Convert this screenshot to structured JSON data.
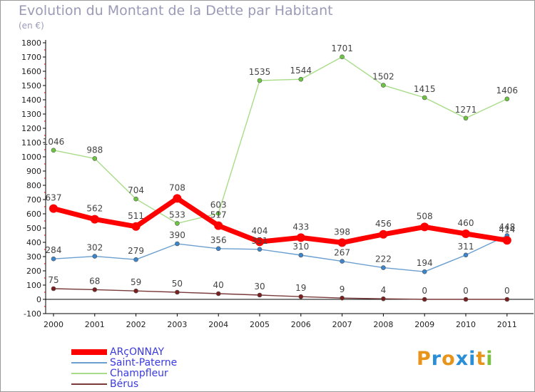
{
  "title": "Evolution du Montant de la Dette par Habitant",
  "subtitle": "(en €)",
  "logo": {
    "text": "Proxiti",
    "letters": [
      "P",
      "r",
      "o",
      "x",
      "i",
      "t",
      "i"
    ],
    "colors": [
      "#e8941a",
      "#2a8fd6",
      "#e8941a",
      "#2a8fd6",
      "#2a8fd6",
      "#e8941a",
      "#7cc242"
    ]
  },
  "chart_data": {
    "type": "line",
    "title": "Evolution du Montant de la Dette par Habitant",
    "ylabel": "(en €)",
    "x": [
      "2000",
      "2001",
      "2002",
      "2003",
      "2004",
      "2005",
      "2006",
      "2007",
      "2008",
      "2009",
      "2010",
      "2011"
    ],
    "ylim": [
      -100,
      1800
    ],
    "yticks": [
      -100,
      0,
      100,
      200,
      300,
      400,
      500,
      600,
      700,
      800,
      900,
      1000,
      1100,
      1200,
      1300,
      1400,
      1500,
      1600,
      1700,
      1800
    ],
    "grid": false,
    "legend": "bottom-left",
    "series": [
      {
        "name": "ARçONNAY",
        "color": "#ff0000",
        "marker": "#ff0000",
        "emphasis": true,
        "values": [
          637,
          562,
          511,
          708,
          517,
          404,
          433,
          398,
          456,
          508,
          460,
          414
        ],
        "labels": [
          "637",
          "562",
          "511",
          "708",
          "517",
          "404",
          "433",
          "398",
          "456",
          "508",
          "460",
          "414"
        ]
      },
      {
        "name": "Saint-Paterne",
        "color": "#6a9fd0",
        "marker": "#3a85cc",
        "values": [
          284,
          302,
          279,
          390,
          356,
          351,
          310,
          267,
          222,
          194,
          311,
          448
        ],
        "labels": [
          "284",
          "302",
          "279",
          "390",
          "356",
          "351",
          "310",
          "267",
          "222",
          "194",
          "311",
          "448"
        ]
      },
      {
        "name": "Champfleur",
        "color": "#a8dc88",
        "marker": "#6cc640",
        "values": [
          1046,
          988,
          704,
          533,
          603,
          1535,
          1544,
          1701,
          1502,
          1415,
          1271,
          1406
        ],
        "labels": [
          "1046",
          "988",
          "704",
          "533",
          "603",
          "1535",
          "1544",
          "1701",
          "1502",
          "1415",
          "1271",
          "1406"
        ]
      },
      {
        "name": "Bérus",
        "color": "#7a3a3a",
        "marker": "#7a1e1e",
        "values": [
          75,
          68,
          59,
          50,
          40,
          30,
          19,
          9,
          4,
          0,
          0,
          0
        ],
        "labels": [
          "75",
          "68",
          "59",
          "50",
          "40",
          "30",
          "19",
          "9",
          "4",
          "0",
          "0",
          "0"
        ]
      }
    ]
  }
}
